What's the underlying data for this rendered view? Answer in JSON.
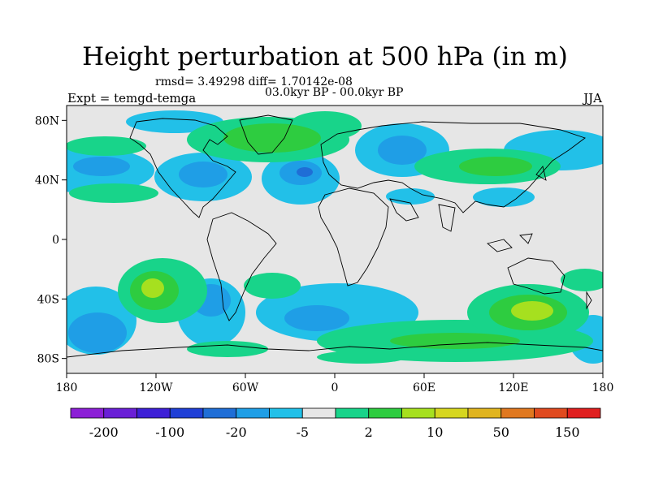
{
  "header": {
    "title": "Height perturbation at 500 hPa (in m)",
    "stats": "rmsd= 3.49298 diff= 1.70142e-08",
    "period": "03.0kyr BP - 00.0kyr BP",
    "experiment": "Expt = temgd-temga",
    "season": "JJA"
  },
  "map": {
    "lon_range": [
      -180,
      180
    ],
    "lat_range": [
      -90,
      90
    ],
    "lon_tick_labels": [
      "180",
      "120W",
      "60W",
      "0",
      "60E",
      "120E",
      "180"
    ],
    "lat_tick_labels": [
      "80N",
      "40N",
      "0",
      "40S",
      "80S"
    ],
    "background_color": "#e6e6e6",
    "coastline_color": "#000000"
  },
  "colorbar": {
    "labels": [
      "-200",
      "-100",
      "-20",
      "-5",
      "2",
      "10",
      "50",
      "150"
    ],
    "colors": [
      "#8c1fd6",
      "#6a1fd6",
      "#3d1fd6",
      "#1f3fd6",
      "#1f6ed6",
      "#1f9ee6",
      "#22c0e8",
      "#e6e6e6",
      "#18d48a",
      "#2ecc40",
      "#a6e01f",
      "#d6d61f",
      "#e0b41f",
      "#e0781f",
      "#e04a1f",
      "#e01f1f"
    ]
  }
}
